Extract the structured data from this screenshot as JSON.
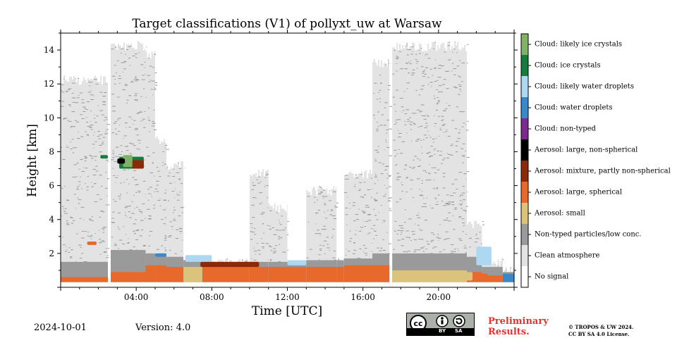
{
  "chart_data": {
    "type": "heatmap",
    "title": "Target classifications (V1) of pollyxt_uw at Warsaw",
    "xlabel": "Time [UTC]",
    "ylabel": "Height [km]",
    "xlim_hours": [
      0,
      24
    ],
    "ylim_km": [
      0,
      15
    ],
    "x_ticks": [
      {
        "hour": 4,
        "label": "04:00"
      },
      {
        "hour": 8,
        "label": "08:00"
      },
      {
        "hour": 12,
        "label": "12:00"
      },
      {
        "hour": 16,
        "label": "16:00"
      },
      {
        "hour": 20,
        "label": "20:00"
      }
    ],
    "y_ticks": [
      2,
      4,
      6,
      8,
      10,
      12,
      14
    ],
    "legend_position": "right colorbar",
    "classes": [
      {
        "label": "No signal",
        "color": "#ffffff"
      },
      {
        "label": "Clean atmosphere",
        "color": "#e3e3e3"
      },
      {
        "label": "Non-typed particles/low conc.",
        "color": "#9a9a9a"
      },
      {
        "label": "Aerosol: small",
        "color": "#dbc37b"
      },
      {
        "label": "Aerosol: large, spherical",
        "color": "#e8692c"
      },
      {
        "label": "Aerosol: mixture, partly non-spherical",
        "color": "#8a2a0b"
      },
      {
        "label": "Aerosol: large, non-spherical",
        "color": "#000000"
      },
      {
        "label": "Cloud: non-typed",
        "color": "#7d2a8e"
      },
      {
        "label": "Cloud: water droplets",
        "color": "#3a87c9"
      },
      {
        "label": "Cloud: likely water droplets",
        "color": "#aed8f2"
      },
      {
        "label": "Cloud: ice crystals",
        "color": "#167b3c"
      },
      {
        "label": "Cloud: likely ice crystals",
        "color": "#7fb267"
      }
    ],
    "profiles": [
      {
        "t0": 0.0,
        "t1": 2.5,
        "clean_top": 12.5,
        "nontyped_top": 1.5,
        "aerosol_top": 0.6,
        "aerosol_class": 4
      },
      {
        "t0": 2.5,
        "t1": 2.65,
        "clean_top": 0,
        "nontyped_top": 0,
        "aerosol_top": 0,
        "aerosol_class": 4
      },
      {
        "t0": 2.65,
        "t1": 4.5,
        "clean_top": 14.5,
        "nontyped_top": 2.2,
        "aerosol_top": 0.9,
        "aerosol_class": 4
      },
      {
        "t0": 4.5,
        "t1": 5.0,
        "clean_top": 14.0,
        "nontyped_top": 2.0,
        "aerosol_top": 1.3,
        "aerosol_class": 4
      },
      {
        "t0": 5.0,
        "t1": 5.6,
        "clean_top": 9.0,
        "nontyped_top": 2.0,
        "aerosol_top": 1.3,
        "aerosol_class": 4
      },
      {
        "t0": 5.6,
        "t1": 6.5,
        "clean_top": 7.5,
        "nontyped_top": 1.8,
        "aerosol_top": 1.2,
        "aerosol_class": 4
      },
      {
        "t0": 6.5,
        "t1": 7.5,
        "clean_top": 1.8,
        "nontyped_top": 1.6,
        "aerosol_top": 1.2,
        "aerosol_class": 3
      },
      {
        "t0": 7.5,
        "t1": 10.0,
        "clean_top": 1.7,
        "nontyped_top": 1.5,
        "aerosol_top": 1.3,
        "aerosol_class": 4
      },
      {
        "t0": 10.0,
        "t1": 11.0,
        "clean_top": 7.0,
        "nontyped_top": 1.5,
        "aerosol_top": 1.2,
        "aerosol_class": 4
      },
      {
        "t0": 11.0,
        "t1": 12.0,
        "clean_top": 5.0,
        "nontyped_top": 1.5,
        "aerosol_top": 1.2,
        "aerosol_class": 4
      },
      {
        "t0": 12.0,
        "t1": 13.0,
        "clean_top": 1.6,
        "nontyped_top": 1.4,
        "aerosol_top": 1.2,
        "aerosol_class": 4
      },
      {
        "t0": 13.0,
        "t1": 14.6,
        "clean_top": 6.0,
        "nontyped_top": 1.6,
        "aerosol_top": 1.2,
        "aerosol_class": 4
      },
      {
        "t0": 14.6,
        "t1": 15.0,
        "clean_top": 1.8,
        "nontyped_top": 1.6,
        "aerosol_top": 1.2,
        "aerosol_class": 4
      },
      {
        "t0": 15.0,
        "t1": 16.5,
        "clean_top": 7.0,
        "nontyped_top": 1.7,
        "aerosol_top": 1.3,
        "aerosol_class": 4
      },
      {
        "t0": 16.5,
        "t1": 17.4,
        "clean_top": 13.5,
        "nontyped_top": 2.0,
        "aerosol_top": 1.3,
        "aerosol_class": 4
      },
      {
        "t0": 17.4,
        "t1": 17.55,
        "clean_top": 0,
        "nontyped_top": 0,
        "aerosol_top": 0,
        "aerosol_class": 4
      },
      {
        "t0": 17.55,
        "t1": 21.5,
        "clean_top": 14.5,
        "nontyped_top": 2.0,
        "aerosol_top": 1.0,
        "aerosol_class": 3
      },
      {
        "t0": 21.5,
        "t1": 22.3,
        "clean_top": 4.0,
        "nontyped_top": 1.8,
        "aerosol_top": 0.9,
        "aerosol_class": 4
      },
      {
        "t0": 22.3,
        "t1": 22.6,
        "clean_top": 1.6,
        "nontyped_top": 1.2,
        "aerosol_top": 0.8,
        "aerosol_class": 4
      },
      {
        "t0": 22.6,
        "t1": 23.4,
        "clean_top": 1.8,
        "nontyped_top": 1.2,
        "aerosol_top": 0.7,
        "aerosol_class": 4
      },
      {
        "t0": 23.4,
        "t1": 24.0,
        "clean_top": 1.2,
        "nontyped_top": 0.9,
        "aerosol_top": 0.8,
        "aerosol_class": 8
      }
    ],
    "features": [
      {
        "name": "ice-cloud-patch",
        "t0": 3.1,
        "t1": 4.4,
        "h0": 7.0,
        "h1": 7.7,
        "class": 10
      },
      {
        "name": "likely-ice-patch",
        "t0": 3.3,
        "t1": 3.8,
        "h0": 7.1,
        "h1": 7.8,
        "class": 11
      },
      {
        "name": "nonspherical-aerosol",
        "t0": 3.0,
        "t1": 3.4,
        "h0": 7.3,
        "h1": 7.6,
        "class": 6
      },
      {
        "name": "mixture-aerosol-high",
        "t0": 3.8,
        "t1": 4.4,
        "h0": 7.0,
        "h1": 7.5,
        "class": 5
      },
      {
        "name": "ice-cloud-streak",
        "t0": 2.1,
        "t1": 2.5,
        "h0": 7.6,
        "h1": 7.8,
        "class": 10
      },
      {
        "name": "water-droplets-morning",
        "t0": 5.0,
        "t1": 5.6,
        "h0": 1.8,
        "h1": 2.0,
        "class": 8
      },
      {
        "name": "likely-water-morning",
        "t0": 6.6,
        "t1": 8.0,
        "h0": 1.5,
        "h1": 1.9,
        "class": 9
      },
      {
        "name": "mixture-aerosol-layer",
        "t0": 7.4,
        "t1": 10.5,
        "h0": 1.2,
        "h1": 1.5,
        "class": 5
      },
      {
        "name": "likely-water-midday",
        "t0": 12.0,
        "t1": 13.0,
        "h0": 1.3,
        "h1": 1.6,
        "class": 9
      },
      {
        "name": "likely-water-evening",
        "t0": 22.0,
        "t1": 22.8,
        "h0": 1.3,
        "h1": 2.4,
        "class": 9
      },
      {
        "name": "small-aerosol-evening",
        "t0": 18.0,
        "t1": 21.8,
        "h0": 0.4,
        "h1": 0.9,
        "class": 3
      },
      {
        "name": "orange-blob-low",
        "t0": 1.4,
        "t1": 1.9,
        "h0": 2.5,
        "h1": 2.7,
        "class": 4
      }
    ]
  },
  "footer": {
    "date": "2024-10-01",
    "version": "Version: 4.0",
    "cc_text_by": "BY",
    "cc_text_sa": "SA",
    "preliminary_line1": "Preliminary",
    "preliminary_line2": "Results.",
    "copyright_line1": "© TROPOS & UW 2024.",
    "copyright_line2": "CC BY SA 4.0 License."
  }
}
